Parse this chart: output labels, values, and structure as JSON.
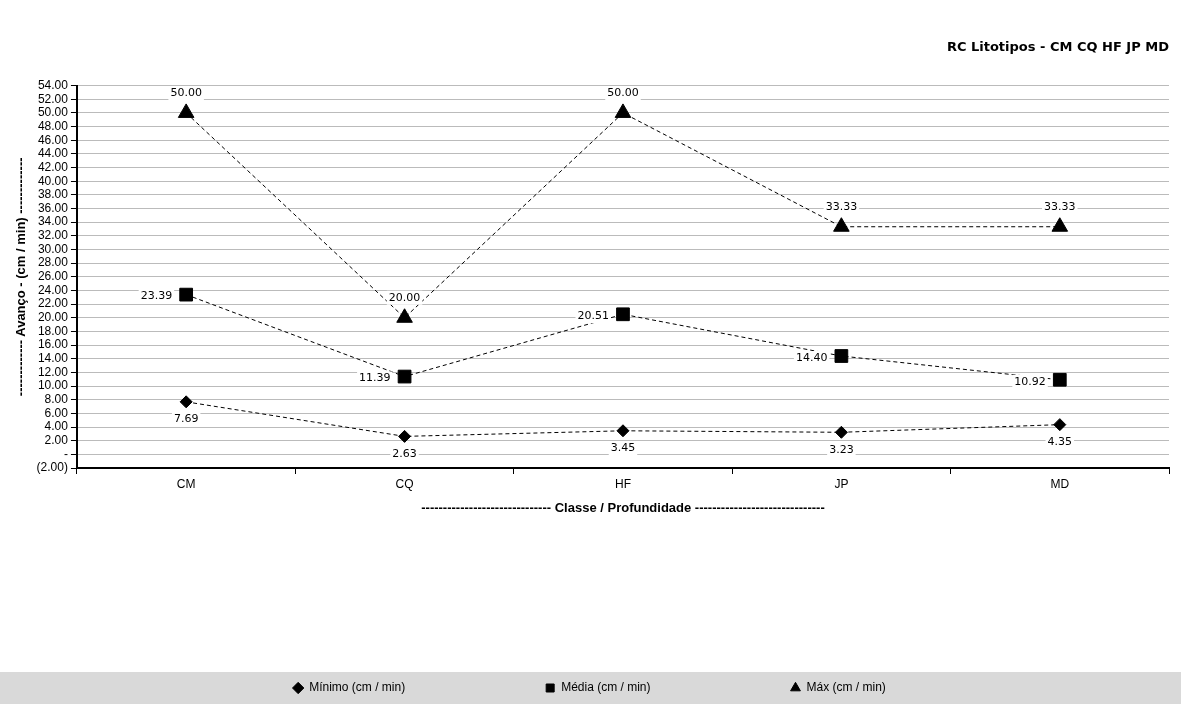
{
  "chart_data": {
    "type": "line",
    "title": "RC Litotipos - CM CQ HF JP MD",
    "xlabel": "------------------------------ Classe / Profundidade ------------------------------",
    "ylabel": "------------- Avanço - (cm / min) -------------",
    "categories": [
      "CM",
      "CQ",
      "HF",
      "JP",
      "MD"
    ],
    "series": [
      {
        "name": "Mínimo (cm / min)",
        "color": "#000000",
        "marker": "diamond",
        "values": [
          7.69,
          2.63,
          3.45,
          3.23,
          4.35
        ],
        "value_labels": [
          "7.69",
          "2.63",
          "3.45",
          "3.23",
          "4.35"
        ]
      },
      {
        "name": "Média (cm / min)",
        "color": "#000000",
        "marker": "square",
        "values": [
          23.39,
          11.39,
          20.51,
          14.4,
          10.92
        ],
        "value_labels": [
          "23.39",
          "11.39",
          "20.51",
          "14.40",
          "10.92"
        ]
      },
      {
        "name": "Máx (cm / min)",
        "color": "#000000",
        "marker": "triangle",
        "values": [
          50.0,
          20.0,
          50.0,
          33.33,
          33.33
        ],
        "value_labels": [
          "50.00",
          "20.00",
          "50.00",
          "33.33",
          "33.33"
        ]
      }
    ],
    "ylim": [
      -2,
      54
    ],
    "yticks": [
      {
        "value": -2,
        "label": "(2.00)"
      },
      {
        "value": 0,
        "label": "-"
      },
      {
        "value": 2,
        "label": "2.00"
      },
      {
        "value": 4,
        "label": "4.00"
      },
      {
        "value": 6,
        "label": "6.00"
      },
      {
        "value": 8,
        "label": "8.00"
      },
      {
        "value": 10,
        "label": "10.00"
      },
      {
        "value": 12,
        "label": "12.00"
      },
      {
        "value": 14,
        "label": "14.00"
      },
      {
        "value": 16,
        "label": "16.00"
      },
      {
        "value": 18,
        "label": "18.00"
      },
      {
        "value": 20,
        "label": "20.00"
      },
      {
        "value": 22,
        "label": "22.00"
      },
      {
        "value": 24,
        "label": "24.00"
      },
      {
        "value": 26,
        "label": "26.00"
      },
      {
        "value": 28,
        "label": "28.00"
      },
      {
        "value": 30,
        "label": "30.00"
      },
      {
        "value": 32,
        "label": "32.00"
      },
      {
        "value": 34,
        "label": "34.00"
      },
      {
        "value": 36,
        "label": "36.00"
      },
      {
        "value": 38,
        "label": "38.00"
      },
      {
        "value": 40,
        "label": "40.00"
      },
      {
        "value": 42,
        "label": "42.00"
      },
      {
        "value": 44,
        "label": "44.00"
      },
      {
        "value": 46,
        "label": "46.00"
      },
      {
        "value": 48,
        "label": "48.00"
      },
      {
        "value": 50,
        "label": "50.00"
      },
      {
        "value": 52,
        "label": "52.00"
      },
      {
        "value": 54,
        "label": "54.00"
      }
    ],
    "grid": "y",
    "legend": "bottom",
    "line_style": "dashed"
  }
}
